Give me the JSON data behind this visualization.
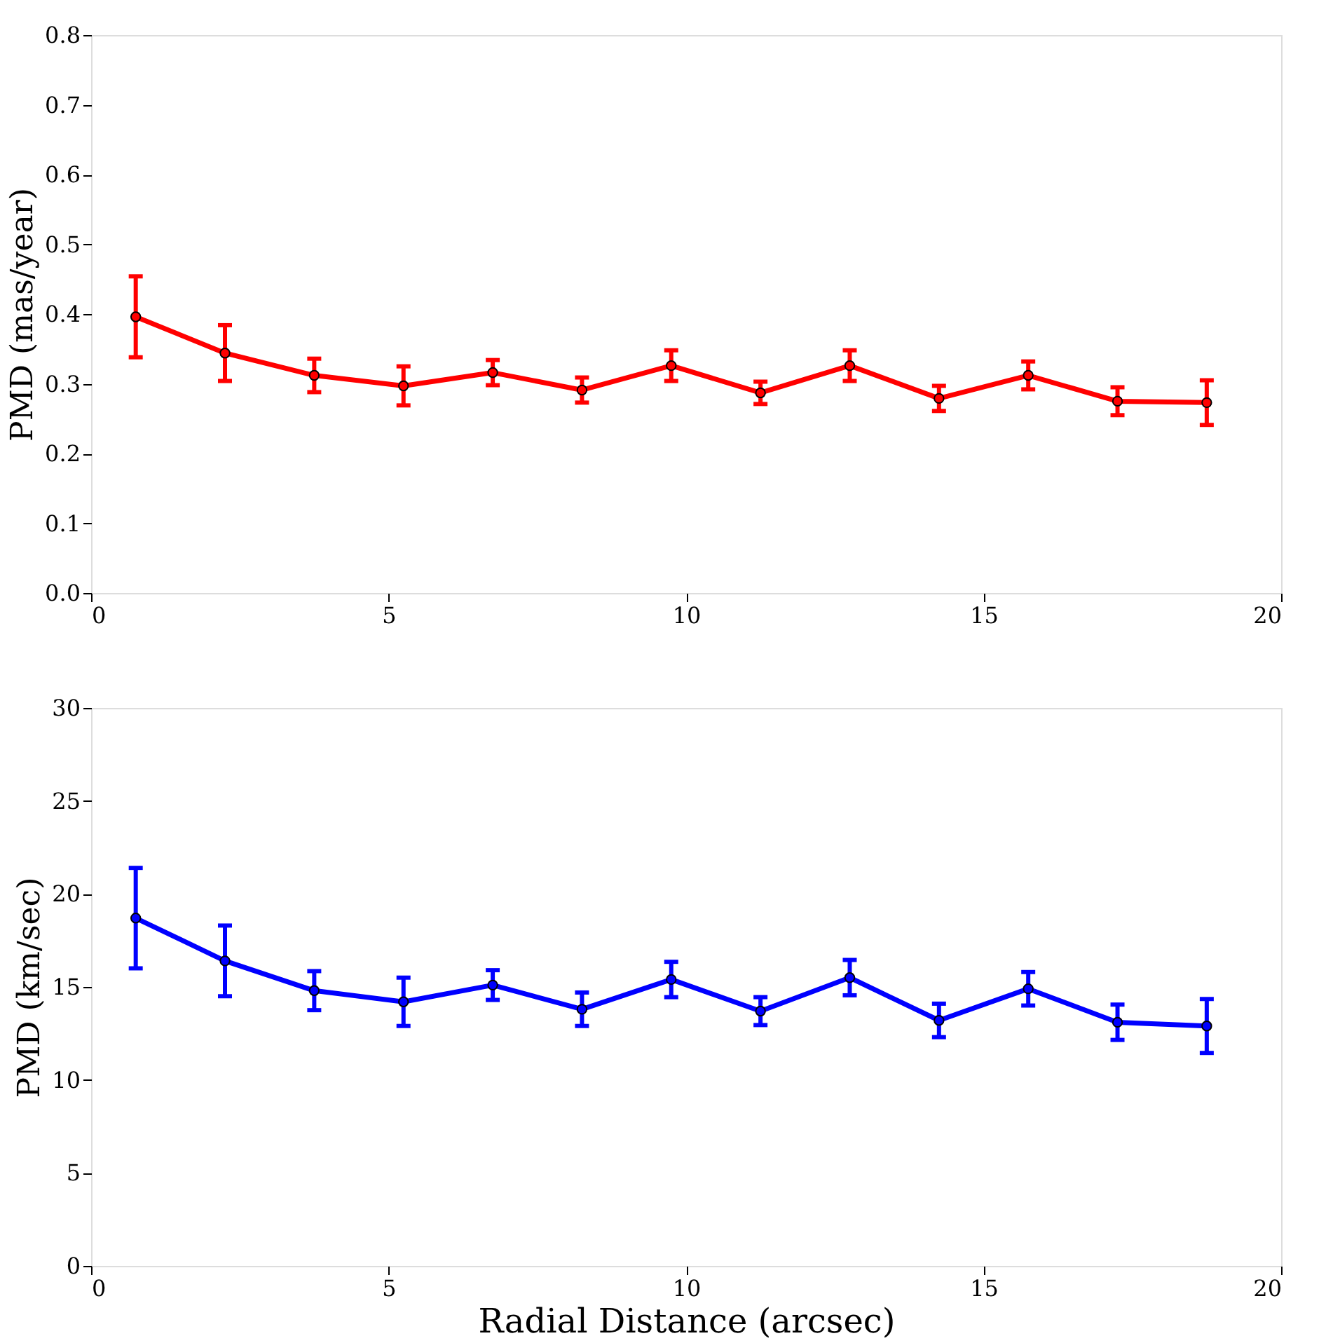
{
  "chart_data": [
    {
      "type": "line",
      "ylabel": "PMD (mas/year)",
      "x": [
        0.75,
        2.25,
        3.75,
        5.25,
        6.75,
        8.25,
        9.75,
        11.25,
        12.75,
        14.25,
        15.75,
        17.25,
        18.75
      ],
      "xlim": [
        0,
        20
      ],
      "xticks": [
        0,
        5,
        10,
        15,
        20
      ],
      "ylim": [
        0,
        0.8
      ],
      "yticks": [
        {
          "value": 0,
          "label": "0.0"
        },
        0.1,
        0.2,
        0.3,
        0.4,
        0.5,
        0.6,
        0.7,
        0.8
      ],
      "grid": false,
      "marker": "circle",
      "line_style": "solid",
      "series": [
        {
          "color": "#ff0000",
          "values": [
            0.396,
            0.344,
            0.312,
            0.297,
            0.316,
            0.291,
            0.326,
            0.287,
            0.326,
            0.279,
            0.312,
            0.275,
            0.273
          ],
          "errors": [
            0.058,
            0.04,
            0.024,
            0.028,
            0.018,
            0.018,
            0.022,
            0.016,
            0.022,
            0.018,
            0.02,
            0.02,
            0.032
          ]
        }
      ]
    },
    {
      "type": "line",
      "xlabel": "Radial Distance (arcsec)",
      "ylabel": "PMD (km/sec)",
      "x": [
        0.75,
        2.25,
        3.75,
        5.25,
        6.75,
        8.25,
        9.75,
        11.25,
        12.75,
        14.25,
        15.75,
        17.25,
        18.75
      ],
      "xlim": [
        0,
        20
      ],
      "xticks": [
        0,
        5,
        10,
        15,
        20
      ],
      "ylim": [
        0,
        30
      ],
      "yticks": [
        0,
        5,
        10,
        15,
        20,
        25,
        30
      ],
      "grid": false,
      "marker": "circle",
      "line_style": "solid",
      "series": [
        {
          "color": "#0000ff",
          "values": [
            18.7,
            16.4,
            14.8,
            14.2,
            15.1,
            13.8,
            15.4,
            13.7,
            15.5,
            13.2,
            14.9,
            13.1,
            12.9
          ],
          "errors": [
            2.7,
            1.9,
            1.05,
            1.3,
            0.8,
            0.9,
            0.95,
            0.75,
            0.95,
            0.9,
            0.9,
            0.95,
            1.45
          ]
        }
      ]
    }
  ]
}
